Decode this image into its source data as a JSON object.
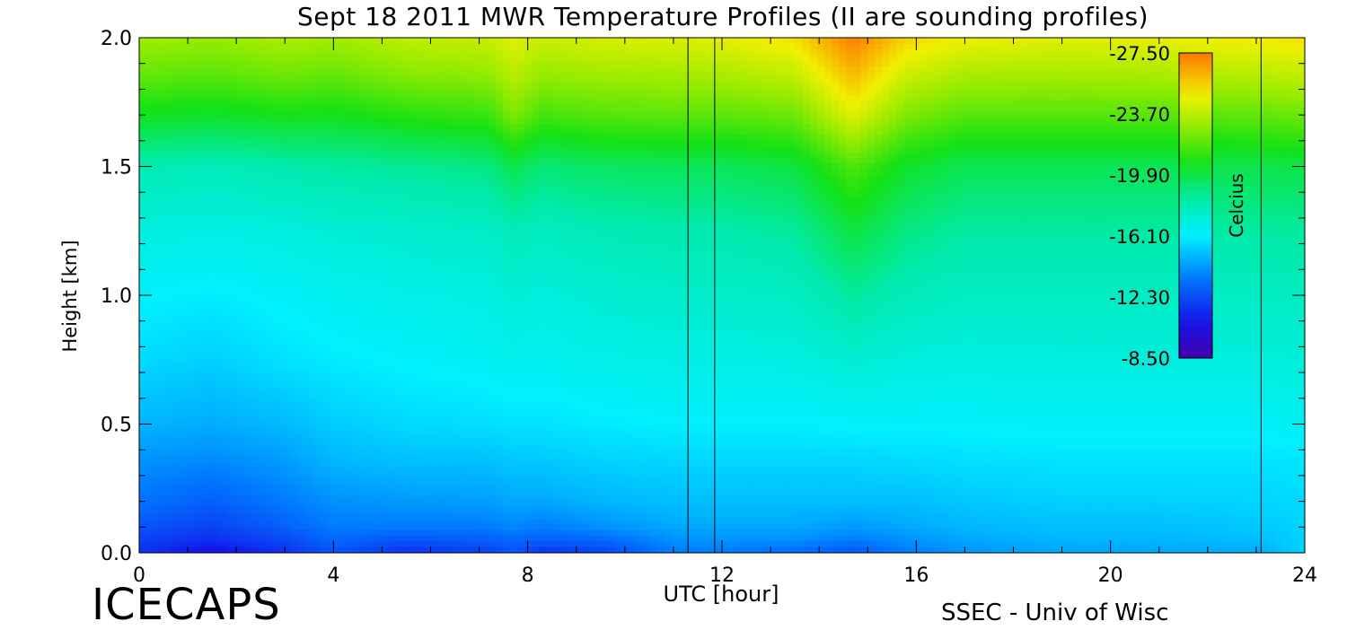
{
  "chart_data": {
    "type": "heatmap",
    "title": "Sept 18 2011 MWR Temperature Profiles (II are sounding profiles)",
    "xlabel": "UTC [hour]",
    "ylabel": "Height [km]",
    "xlim": [
      0,
      24
    ],
    "ylim": [
      0,
      2.0
    ],
    "x_ticks": [
      "0",
      "4",
      "8",
      "12",
      "16",
      "20",
      "24"
    ],
    "y_ticks": [
      "0.0",
      "0.5",
      "1.0",
      "1.5",
      "2.0"
    ],
    "colorbar": {
      "label": "Celcius",
      "range": [
        -27.5,
        -8.5
      ],
      "ticks": [
        "-8.50",
        "-12.30",
        "-16.10",
        "-19.90",
        "-23.70",
        "-27.50"
      ]
    },
    "sounding_times_utc": [
      11.3,
      11.85,
      23.1
    ],
    "height_levels_km": [
      0.0,
      0.05,
      0.1,
      0.2,
      0.35,
      0.5,
      0.75,
      1.0,
      1.25,
      1.5,
      1.7,
      1.85,
      2.0
    ],
    "time_hours": [
      0,
      1.5,
      3,
      4,
      5.5,
      7.2,
      7.7,
      8.3,
      9.5,
      11,
      12,
      13.5,
      14.7,
      15.8,
      17,
      19,
      21,
      23,
      24
    ],
    "temperature_c": [
      [
        -11.5,
        -10.5,
        -11.5,
        -12.5,
        -11.5,
        -12.0,
        -12.5,
        -11.5,
        -12.0,
        -13.5,
        -13.5,
        -13.0,
        -12.5,
        -13.5,
        -14.0,
        -14.5,
        -14.5,
        -14.5,
        -15.5
      ],
      [
        -12.0,
        -11.5,
        -12.2,
        -13.0,
        -12.5,
        -12.8,
        -13.0,
        -12.8,
        -13.0,
        -14.0,
        -14.0,
        -14.0,
        -13.5,
        -14.0,
        -14.5,
        -14.8,
        -14.8,
        -15.0,
        -15.5
      ],
      [
        -12.5,
        -12.0,
        -12.8,
        -13.5,
        -13.5,
        -13.5,
        -13.8,
        -13.5,
        -14.0,
        -14.5,
        -14.5,
        -14.5,
        -14.2,
        -14.5,
        -14.8,
        -15.0,
        -15.0,
        -15.2,
        -15.5
      ],
      [
        -13.3,
        -12.8,
        -13.5,
        -14.0,
        -14.2,
        -14.3,
        -14.5,
        -14.5,
        -14.8,
        -15.0,
        -15.0,
        -15.0,
        -15.0,
        -15.0,
        -15.2,
        -15.4,
        -15.4,
        -15.5,
        -15.6
      ],
      [
        -14.0,
        -13.8,
        -14.2,
        -14.8,
        -15.0,
        -15.0,
        -15.2,
        -15.2,
        -15.4,
        -15.5,
        -15.5,
        -15.5,
        -15.5,
        -15.6,
        -15.7,
        -15.8,
        -15.8,
        -15.8,
        -15.9
      ],
      [
        -14.8,
        -14.6,
        -14.9,
        -15.3,
        -15.6,
        -15.7,
        -15.8,
        -15.8,
        -16.0,
        -16.1,
        -16.1,
        -16.1,
        -16.2,
        -16.2,
        -16.2,
        -16.3,
        -16.3,
        -16.3,
        -16.4
      ],
      [
        -15.6,
        -15.4,
        -15.8,
        -16.0,
        -16.2,
        -16.4,
        -16.6,
        -16.5,
        -16.7,
        -16.8,
        -16.8,
        -16.9,
        -17.3,
        -17.0,
        -16.9,
        -17.0,
        -17.0,
        -17.0,
        -17.1
      ],
      [
        -16.2,
        -16.0,
        -16.3,
        -16.5,
        -16.7,
        -16.9,
        -17.2,
        -17.0,
        -17.3,
        -17.5,
        -17.5,
        -17.7,
        -18.6,
        -18.0,
        -17.7,
        -17.7,
        -17.7,
        -17.7,
        -17.8
      ],
      [
        -17.0,
        -16.8,
        -17.0,
        -17.2,
        -17.4,
        -17.6,
        -18.0,
        -17.8,
        -18.1,
        -18.3,
        -18.3,
        -18.6,
        -20.0,
        -19.0,
        -18.5,
        -18.5,
        -18.5,
        -18.5,
        -18.6
      ],
      [
        -18.2,
        -18.0,
        -18.3,
        -18.5,
        -18.7,
        -19.0,
        -19.8,
        -19.2,
        -19.5,
        -19.6,
        -19.6,
        -20.0,
        -21.7,
        -20.3,
        -19.7,
        -19.7,
        -19.7,
        -19.8,
        -19.9
      ],
      [
        -20.5,
        -20.3,
        -20.6,
        -20.5,
        -21.0,
        -21.3,
        -22.5,
        -21.5,
        -21.8,
        -21.9,
        -21.9,
        -22.2,
        -24.5,
        -22.5,
        -21.8,
        -21.8,
        -21.8,
        -22.0,
        -22.2
      ],
      [
        -22.0,
        -21.8,
        -22.2,
        -22.0,
        -22.6,
        -22.8,
        -23.6,
        -22.9,
        -23.1,
        -23.2,
        -23.3,
        -23.8,
        -26.0,
        -24.0,
        -23.3,
        -23.2,
        -23.3,
        -23.6,
        -23.8
      ],
      [
        -23.2,
        -23.0,
        -23.4,
        -23.2,
        -23.8,
        -24.0,
        -24.6,
        -24.0,
        -24.3,
        -24.4,
        -24.6,
        -25.2,
        -27.4,
        -25.5,
        -24.8,
        -24.5,
        -24.7,
        -25.0,
        -25.2
      ]
    ]
  },
  "brand": "ICECAPS",
  "credit": "SSEC - Univ of Wisc"
}
